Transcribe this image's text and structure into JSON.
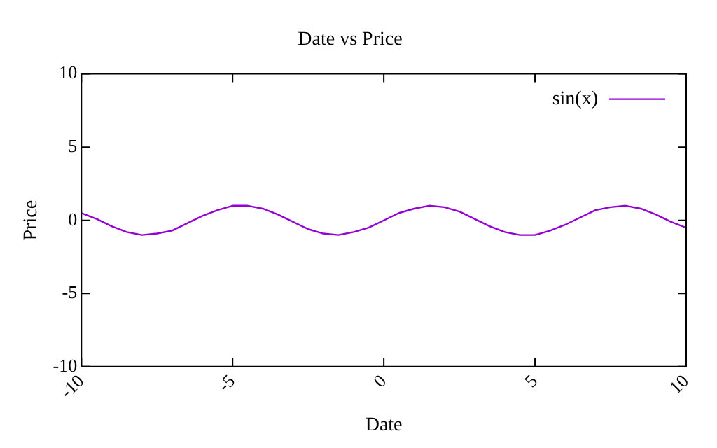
{
  "chart_data": {
    "type": "line",
    "title": "Date vs Price",
    "xlabel": "Date",
    "ylabel": "Price",
    "x": [
      -10,
      -9.5,
      -9,
      -8.5,
      -8,
      -7.5,
      -7,
      -6.5,
      -6,
      -5.5,
      -5,
      -4.5,
      -4,
      -3.5,
      -3,
      -2.5,
      -2,
      -1.5,
      -1,
      -0.5,
      0,
      0.5,
      1,
      1.5,
      2,
      2.5,
      3,
      3.5,
      4,
      4.5,
      5,
      5.5,
      6,
      6.5,
      7,
      7.5,
      8,
      8.5,
      9,
      9.5,
      10
    ],
    "series": [
      {
        "name": "sin(x)",
        "color": "#9400d3",
        "values": [
          0.5,
          0.1,
          -0.4,
          -0.8,
          -1,
          -0.9,
          -0.7,
          -0.2,
          0.3,
          0.7,
          1,
          1,
          0.8,
          0.4,
          -0.1,
          -0.6,
          -0.9,
          -1,
          -0.8,
          -0.5,
          0,
          0.5,
          0.8,
          1,
          0.9,
          0.6,
          0.1,
          -0.4,
          -0.8,
          -1,
          -1,
          -0.7,
          -0.3,
          0.2,
          0.7,
          0.9,
          1,
          0.8,
          0.4,
          -0.1,
          -0.5
        ]
      }
    ],
    "xlim": [
      -10,
      10
    ],
    "xticks": [
      -10,
      -5,
      0,
      5,
      10
    ],
    "ylim": [
      -10,
      10
    ],
    "yticks": [
      -10,
      -5,
      0,
      5,
      10
    ],
    "grid": false,
    "legend": "top right",
    "marker": "none",
    "line_style": "solid"
  }
}
